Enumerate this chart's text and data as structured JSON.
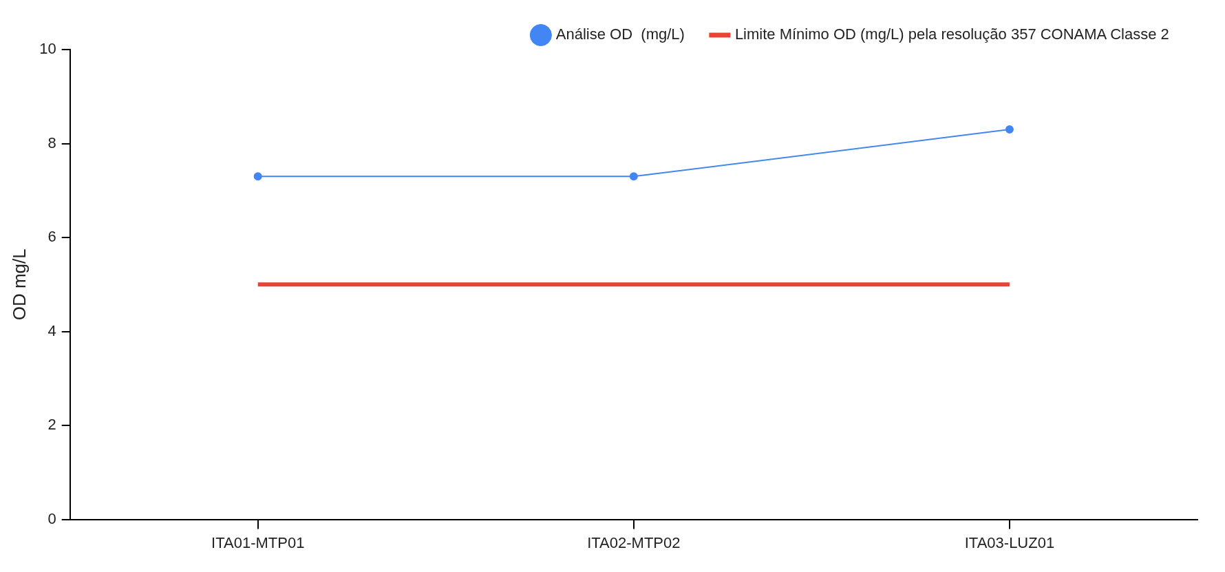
{
  "chart_data": {
    "type": "line",
    "ylabel": "OD mg/L",
    "categories": [
      "ITA01-MTP01",
      "ITA02-MTP02",
      "ITA03-LUZ01"
    ],
    "series": [
      {
        "name": "Análise OD  (mg/L)",
        "color": "#4285f4",
        "values": [
          7.3,
          7.3,
          8.3
        ],
        "marker": "circle"
      },
      {
        "name": "Limite Mínimo OD (mg/L) pela resolução 357 CONAMA Classe 2",
        "color": "#ea4335",
        "values": [
          5,
          5,
          5
        ],
        "marker": "none"
      }
    ],
    "ylim": [
      0,
      10
    ],
    "yticks": [
      0,
      2,
      4,
      6,
      8,
      10
    ],
    "grid": false,
    "legend": "top right",
    "line_style": "solid"
  }
}
